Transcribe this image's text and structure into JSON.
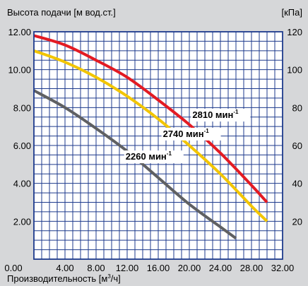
{
  "chart_data": {
    "type": "line",
    "ylabel_left": "Высота подачи [м вод.ст.]",
    "ylabel_right": "[кПа]",
    "xlabel": {
      "main": "Производительность [м",
      "sup": "3",
      "tail": "/ч]"
    },
    "xlim": [
      0,
      32
    ],
    "ylim": [
      0,
      12
    ],
    "ylim_right": [
      0,
      120
    ],
    "x_ticks": [
      "0.00",
      "4.00",
      "8.00",
      "12.00",
      "16.00",
      "20.00",
      "24.00",
      "28.00",
      "32.00"
    ],
    "y_ticks_left": [
      "2.00",
      "4.00",
      "6.00",
      "8.00",
      "10.00",
      "12.00"
    ],
    "y_ticks_right": [
      "20",
      "40",
      "60",
      "80",
      "100",
      "120"
    ],
    "grid": true,
    "series": [
      {
        "name": "2810 мин",
        "sup": "-1",
        "color": "#e31b23",
        "x": [
          0,
          4,
          8,
          12,
          16,
          20,
          24,
          28,
          30
        ],
        "y": [
          11.8,
          11.3,
          10.5,
          9.6,
          8.4,
          7.1,
          5.6,
          3.9,
          3.0
        ]
      },
      {
        "name": "2740 мин",
        "sup": "-1",
        "color": "#f2c500",
        "x": [
          0,
          4,
          8,
          12,
          16,
          20,
          24,
          28,
          30
        ],
        "y": [
          11.0,
          10.4,
          9.6,
          8.6,
          7.4,
          6.0,
          4.5,
          2.8,
          2.0
        ]
      },
      {
        "name": "2260 мин",
        "sup": "-1",
        "color": "#5f6062",
        "x": [
          0,
          4,
          8,
          12,
          16,
          20,
          24,
          26
        ],
        "y": [
          8.9,
          8.0,
          6.9,
          5.7,
          4.3,
          2.9,
          1.7,
          1.1
        ]
      }
    ]
  }
}
